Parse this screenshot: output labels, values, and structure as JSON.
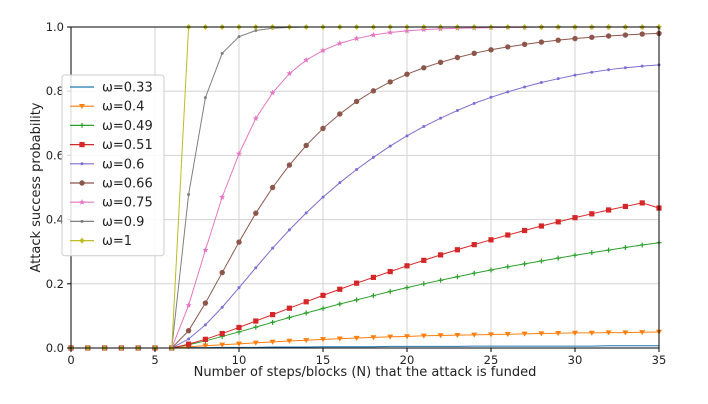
{
  "chart_data": {
    "type": "line",
    "xlabel": "Number of steps/blocks (N) that the attack is funded",
    "ylabel": "Attack success probability",
    "xlim": [
      0,
      35
    ],
    "ylim": [
      0,
      1.0
    ],
    "x_ticks": [
      "0",
      "5",
      "10",
      "15",
      "20",
      "25",
      "30",
      "35"
    ],
    "y_ticks": [
      "0.0",
      "0.2",
      "0.4",
      "0.6",
      "0.8",
      "1.0"
    ],
    "grid": true,
    "legend_position": "left",
    "x": [
      0,
      1,
      2,
      3,
      4,
      5,
      6,
      7,
      8,
      9,
      10,
      11,
      12,
      13,
      14,
      15,
      16,
      17,
      18,
      19,
      20,
      21,
      22,
      23,
      24,
      25,
      26,
      27,
      28,
      29,
      30,
      31,
      32,
      33,
      34,
      35
    ],
    "series": [
      {
        "name": "ω=0.33",
        "color": "#1f77b4",
        "marker": "none",
        "values": [
          0,
          0,
          0,
          0,
          0,
          0,
          0,
          0.001,
          0.001,
          0.002,
          0.002,
          0.002,
          0.003,
          0.003,
          0.003,
          0.004,
          0.004,
          0.004,
          0.004,
          0.005,
          0.005,
          0.005,
          0.005,
          0.005,
          0.006,
          0.006,
          0.006,
          0.006,
          0.006,
          0.006,
          0.006,
          0.006,
          0.007,
          0.007,
          0.007,
          0.007
        ]
      },
      {
        "name": "ω=0.4",
        "color": "#ff7f0e",
        "marker": "triangle-down",
        "values": [
          0,
          0,
          0,
          0,
          0,
          0,
          0,
          0.004,
          0.007,
          0.01,
          0.013,
          0.016,
          0.019,
          0.022,
          0.024,
          0.027,
          0.029,
          0.031,
          0.033,
          0.035,
          0.036,
          0.038,
          0.039,
          0.04,
          0.041,
          0.042,
          0.043,
          0.044,
          0.045,
          0.046,
          0.047,
          0.047,
          0.048,
          0.048,
          0.049,
          0.05
        ]
      },
      {
        "name": "ω=0.49",
        "color": "#2ca02c",
        "marker": "plus",
        "values": [
          0,
          0,
          0,
          0,
          0,
          0,
          0,
          0.01,
          0.022,
          0.036,
          0.05,
          0.065,
          0.08,
          0.095,
          0.109,
          0.123,
          0.137,
          0.15,
          0.163,
          0.176,
          0.188,
          0.2,
          0.211,
          0.222,
          0.233,
          0.243,
          0.253,
          0.262,
          0.271,
          0.28,
          0.289,
          0.297,
          0.305,
          0.313,
          0.321,
          0.328
        ]
      },
      {
        "name": "ω=0.51",
        "color": "#d62728",
        "marker": "square",
        "values": [
          0,
          0,
          0,
          0,
          0,
          0,
          0,
          0.012,
          0.027,
          0.045,
          0.064,
          0.084,
          0.104,
          0.124,
          0.144,
          0.164,
          0.183,
          0.202,
          0.22,
          0.238,
          0.256,
          0.273,
          0.29,
          0.306,
          0.322,
          0.337,
          0.352,
          0.366,
          0.38,
          0.393,
          0.406,
          0.418,
          0.43,
          0.441,
          0.452,
          0.436
        ]
      },
      {
        "name": "ω=0.6",
        "color": "#7b6fcf",
        "marker": "dot",
        "values": [
          0,
          0,
          0,
          0,
          0,
          0,
          0,
          0.028,
          0.072,
          0.127,
          0.188,
          0.25,
          0.311,
          0.368,
          0.421,
          0.47,
          0.515,
          0.556,
          0.594,
          0.629,
          0.661,
          0.69,
          0.716,
          0.74,
          0.762,
          0.781,
          0.798,
          0.813,
          0.827,
          0.839,
          0.85,
          0.859,
          0.867,
          0.873,
          0.878,
          0.882
        ]
      },
      {
        "name": "ω=0.66",
        "color": "#8c564b",
        "marker": "circle",
        "values": [
          0,
          0,
          0,
          0,
          0,
          0,
          0,
          0.054,
          0.14,
          0.235,
          0.33,
          0.42,
          0.5,
          0.57,
          0.631,
          0.684,
          0.729,
          0.768,
          0.801,
          0.829,
          0.853,
          0.873,
          0.89,
          0.905,
          0.918,
          0.929,
          0.938,
          0.946,
          0.953,
          0.959,
          0.964,
          0.968,
          0.972,
          0.975,
          0.978,
          0.98
        ]
      },
      {
        "name": "ω=0.75",
        "color": "#e377c2",
        "marker": "star",
        "values": [
          0,
          0,
          0,
          0,
          0,
          0,
          0,
          0.133,
          0.305,
          0.47,
          0.605,
          0.715,
          0.795,
          0.855,
          0.897,
          0.927,
          0.949,
          0.964,
          0.975,
          0.983,
          0.988,
          0.992,
          0.994,
          0.996,
          0.997,
          0.998,
          0.999,
          0.999,
          1.0,
          1.0,
          1.0,
          1.0,
          1.0,
          1.0,
          1.0,
          1.0
        ]
      },
      {
        "name": "ω=0.9",
        "color": "#7f7f7f",
        "marker": "dot",
        "values": [
          0,
          0,
          0,
          0,
          0,
          0,
          0,
          0.478,
          0.78,
          0.918,
          0.97,
          0.989,
          0.996,
          0.999,
          1.0,
          1.0,
          1.0,
          1.0,
          1.0,
          1.0,
          1.0,
          1.0,
          1.0,
          1.0,
          1.0,
          1.0,
          1.0,
          1.0,
          1.0,
          1.0,
          1.0,
          1.0,
          1.0,
          1.0,
          1.0,
          1.0
        ]
      },
      {
        "name": "ω=1",
        "color": "#bcbd22",
        "marker": "diamond",
        "values": [
          0,
          0,
          0,
          0,
          0,
          0,
          0,
          1.0,
          1.0,
          1.0,
          1.0,
          1.0,
          1.0,
          1.0,
          1.0,
          1.0,
          1.0,
          1.0,
          1.0,
          1.0,
          1.0,
          1.0,
          1.0,
          1.0,
          1.0,
          1.0,
          1.0,
          1.0,
          1.0,
          1.0,
          1.0,
          1.0,
          1.0,
          1.0,
          1.0,
          1.0
        ]
      }
    ]
  }
}
